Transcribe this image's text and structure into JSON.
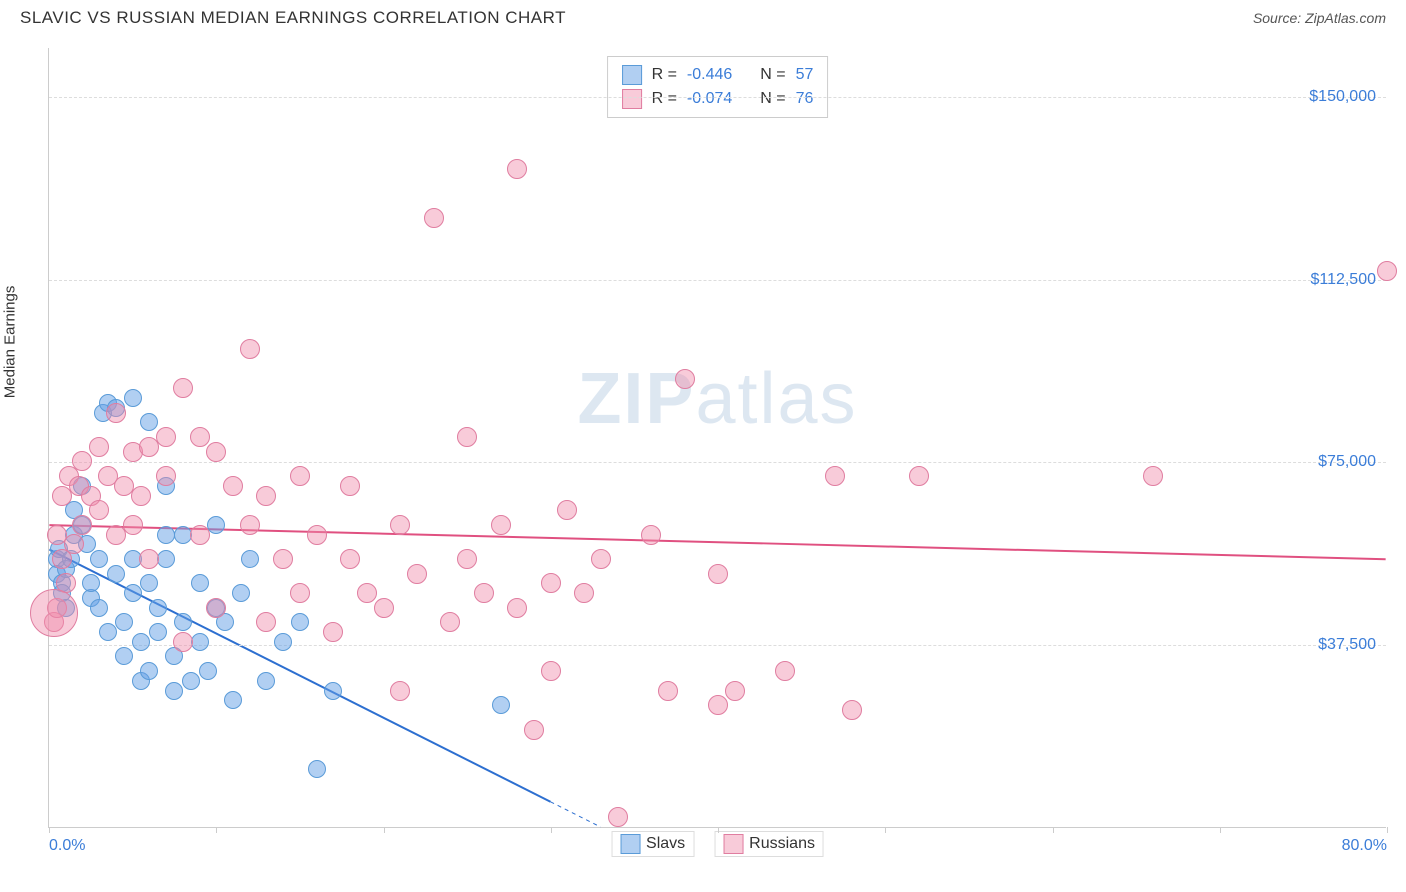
{
  "header": {
    "title": "SLAVIC VS RUSSIAN MEDIAN EARNINGS CORRELATION CHART",
    "source": "Source: ZipAtlas.com"
  },
  "chart": {
    "type": "scatter",
    "ylabel": "Median Earnings",
    "xlim": [
      0,
      80
    ],
    "ylim": [
      0,
      160000
    ],
    "x_tick_labels": {
      "0": "0.0%",
      "80": "80.0%"
    },
    "y_gridlines": [
      37500,
      75000,
      112500,
      150000
    ],
    "y_tick_labels": {
      "37500": "$37,500",
      "75000": "$75,000",
      "112500": "$112,500",
      "150000": "$150,000"
    },
    "x_ticks": [
      0,
      10,
      20,
      30,
      40,
      50,
      60,
      70,
      80
    ],
    "background_color": "#ffffff",
    "grid_color": "#dddddd",
    "axis_color": "#cccccc",
    "label_color": "#3b7dd8",
    "watermark": {
      "text_bold": "ZIP",
      "text_light": "atlas",
      "color": "rgba(120,160,200,0.25)"
    },
    "series": [
      {
        "name": "Slavs",
        "marker_color": "rgba(100, 160, 230, 0.5)",
        "marker_border": "#5a9bd8",
        "marker_radius": 9,
        "R": "-0.446",
        "N": "57",
        "trend": {
          "x1": 0,
          "y1": 57000,
          "x2": 33,
          "y2": 0,
          "color": "#2d6fd0",
          "width": 2,
          "dash_after_x": 30
        },
        "points": [
          [
            0.5,
            55000
          ],
          [
            0.5,
            52000
          ],
          [
            0.8,
            50000
          ],
          [
            0.6,
            57000
          ],
          [
            0.8,
            48000
          ],
          [
            1.0,
            53000
          ],
          [
            1.0,
            45000
          ],
          [
            1.3,
            55000
          ],
          [
            1.5,
            60000
          ],
          [
            1.5,
            65000
          ],
          [
            2.0,
            62000
          ],
          [
            2.0,
            70000
          ],
          [
            2.3,
            58000
          ],
          [
            2.5,
            47000
          ],
          [
            2.5,
            50000
          ],
          [
            3.0,
            45000
          ],
          [
            3.0,
            55000
          ],
          [
            3.2,
            85000
          ],
          [
            3.5,
            40000
          ],
          [
            3.5,
            87000
          ],
          [
            4.0,
            52000
          ],
          [
            4.0,
            86000
          ],
          [
            4.5,
            35000
          ],
          [
            4.5,
            42000
          ],
          [
            5.0,
            48000
          ],
          [
            5.0,
            55000
          ],
          [
            5.0,
            88000
          ],
          [
            5.5,
            30000
          ],
          [
            5.5,
            38000
          ],
          [
            6.0,
            32000
          ],
          [
            6.0,
            50000
          ],
          [
            6.0,
            83000
          ],
          [
            6.5,
            40000
          ],
          [
            6.5,
            45000
          ],
          [
            7.0,
            55000
          ],
          [
            7.0,
            60000
          ],
          [
            7.0,
            70000
          ],
          [
            7.5,
            28000
          ],
          [
            7.5,
            35000
          ],
          [
            8.0,
            42000
          ],
          [
            8.0,
            60000
          ],
          [
            8.5,
            30000
          ],
          [
            9.0,
            38000
          ],
          [
            9.0,
            50000
          ],
          [
            9.5,
            32000
          ],
          [
            10.0,
            62000
          ],
          [
            10.0,
            45000
          ],
          [
            10.5,
            42000
          ],
          [
            11.0,
            26000
          ],
          [
            11.5,
            48000
          ],
          [
            12.0,
            55000
          ],
          [
            13.0,
            30000
          ],
          [
            14.0,
            38000
          ],
          [
            15.0,
            42000
          ],
          [
            16.0,
            12000
          ],
          [
            17.0,
            28000
          ],
          [
            27.0,
            25000
          ]
        ]
      },
      {
        "name": "Russians",
        "marker_color": "rgba(240, 140, 170, 0.45)",
        "marker_border": "#e07da0",
        "marker_radius": 10,
        "R": "-0.074",
        "N": "76",
        "trend": {
          "x1": 0,
          "y1": 62000,
          "x2": 80,
          "y2": 55000,
          "color": "#e05080",
          "width": 2
        },
        "points": [
          [
            0.3,
            42000
          ],
          [
            0.5,
            45000
          ],
          [
            0.5,
            60000
          ],
          [
            0.8,
            55000
          ],
          [
            0.8,
            68000
          ],
          [
            1.0,
            50000
          ],
          [
            1.2,
            72000
          ],
          [
            1.5,
            58000
          ],
          [
            1.8,
            70000
          ],
          [
            2.0,
            62000
          ],
          [
            2.0,
            75000
          ],
          [
            2.5,
            68000
          ],
          [
            3.0,
            65000
          ],
          [
            3.0,
            78000
          ],
          [
            3.5,
            72000
          ],
          [
            4.0,
            60000
          ],
          [
            4.0,
            85000
          ],
          [
            4.5,
            70000
          ],
          [
            5.0,
            62000
          ],
          [
            5.0,
            77000
          ],
          [
            5.5,
            68000
          ],
          [
            6.0,
            55000
          ],
          [
            6.0,
            78000
          ],
          [
            7.0,
            72000
          ],
          [
            7.0,
            80000
          ],
          [
            8.0,
            90000
          ],
          [
            8.0,
            38000
          ],
          [
            9.0,
            80000
          ],
          [
            9.0,
            60000
          ],
          [
            10.0,
            77000
          ],
          [
            10.0,
            45000
          ],
          [
            11.0,
            70000
          ],
          [
            12.0,
            62000
          ],
          [
            12.0,
            98000
          ],
          [
            13.0,
            42000
          ],
          [
            13.0,
            68000
          ],
          [
            14.0,
            55000
          ],
          [
            15.0,
            72000
          ],
          [
            15.0,
            48000
          ],
          [
            16.0,
            60000
          ],
          [
            17.0,
            40000
          ],
          [
            18.0,
            55000
          ],
          [
            18.0,
            70000
          ],
          [
            19.0,
            48000
          ],
          [
            20.0,
            45000
          ],
          [
            21.0,
            62000
          ],
          [
            21.0,
            28000
          ],
          [
            22.0,
            52000
          ],
          [
            23.0,
            125000
          ],
          [
            24.0,
            42000
          ],
          [
            25.0,
            80000
          ],
          [
            25.0,
            55000
          ],
          [
            26.0,
            48000
          ],
          [
            27.0,
            62000
          ],
          [
            28.0,
            135000
          ],
          [
            28.0,
            45000
          ],
          [
            29.0,
            20000
          ],
          [
            30.0,
            50000
          ],
          [
            30.0,
            32000
          ],
          [
            31.0,
            65000
          ],
          [
            32.0,
            48000
          ],
          [
            33.0,
            55000
          ],
          [
            34.0,
            2000
          ],
          [
            36.0,
            60000
          ],
          [
            37.0,
            28000
          ],
          [
            38.0,
            92000
          ],
          [
            40.0,
            25000
          ],
          [
            40.0,
            52000
          ],
          [
            41.0,
            28000
          ],
          [
            44.0,
            32000
          ],
          [
            47.0,
            72000
          ],
          [
            48.0,
            24000
          ],
          [
            52.0,
            72000
          ],
          [
            66.0,
            72000
          ],
          [
            80.0,
            114000
          ],
          [
            0.3,
            44000,
            24
          ]
        ]
      }
    ],
    "legend": {
      "items": [
        {
          "label": "Slavs",
          "fill": "rgba(100,160,230,0.5)",
          "border": "#5a9bd8"
        },
        {
          "label": "Russians",
          "fill": "rgba(240,140,170,0.45)",
          "border": "#e07da0"
        }
      ]
    }
  }
}
